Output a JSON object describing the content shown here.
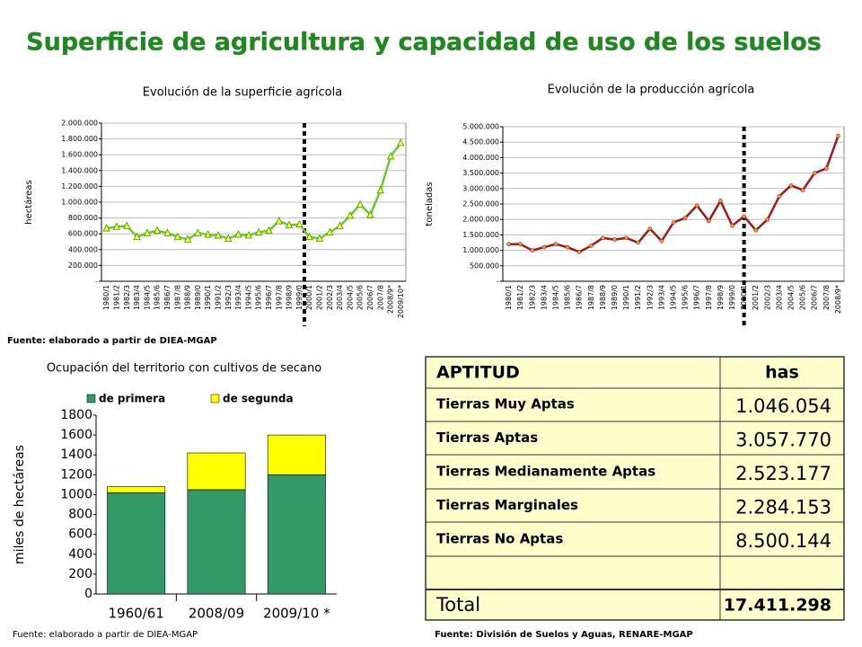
{
  "title": "Superficie de agricultura y capacidad de uso de los suelos",
  "chart_data": [
    {
      "type": "line",
      "title": "Evolución de la superficie agrícola",
      "y_label": "hectáreas",
      "categories": [
        "1980/1",
        "1981/2",
        "1982/3",
        "1983/4",
        "1984/5",
        "1985/6",
        "1986/7",
        "1987/8",
        "1988/9",
        "1989/0",
        "1990/1",
        "1991/2",
        "1992/3",
        "1993/4",
        "1994/5",
        "1995/6",
        "1996/7",
        "1997/8",
        "1998/9",
        "1999/0",
        "2000/1",
        "2001/2",
        "2002/3",
        "2003/4",
        "2004/5",
        "2005/6",
        "2006/7",
        "2007/8",
        "2008/9*",
        "2009/10*"
      ],
      "values": [
        670000,
        690000,
        700000,
        560000,
        610000,
        640000,
        610000,
        560000,
        530000,
        610000,
        590000,
        580000,
        540000,
        590000,
        580000,
        620000,
        640000,
        760000,
        710000,
        720000,
        560000,
        540000,
        620000,
        700000,
        830000,
        970000,
        840000,
        1150000,
        1580000,
        1750000
      ],
      "color": "#66cc33",
      "marker_color": "#ffff33",
      "ylim": [
        0,
        2000000
      ],
      "yticks": [
        {
          "value": 0,
          "label": "-"
        },
        {
          "value": 200000,
          "label": "200.000"
        },
        {
          "value": 400000,
          "label": "400.000"
        },
        {
          "value": 600000,
          "label": "600.000"
        },
        {
          "value": 800000,
          "label": "800.000"
        },
        {
          "value": 1000000,
          "label": "1.000.000"
        },
        {
          "value": 1200000,
          "label": "1.200.000"
        },
        {
          "value": 1400000,
          "label": "1.400.000"
        },
        {
          "value": 1600000,
          "label": "1.600.000"
        },
        {
          "value": 1800000,
          "label": "1.800.000"
        },
        {
          "value": 2000000,
          "label": "2.000.000"
        }
      ],
      "grid": true
    },
    {
      "type": "line",
      "title": "Evolución de la producción agrícola",
      "y_label": "toneladas",
      "categories": [
        "1980/1",
        "1981/2",
        "1982/3",
        "1983/4",
        "1984/5",
        "1985/6",
        "1986/7",
        "1987/8",
        "1988/9",
        "1989/0",
        "1990/1",
        "1991/2",
        "1992/3",
        "1993/4",
        "1994/5",
        "1995/6",
        "1996/7",
        "1997/8",
        "1998/9",
        "1999/0",
        "2000/1",
        "2001/2",
        "2002/3",
        "2003/4",
        "2004/5",
        "2005/6",
        "2006/7",
        "2007/8",
        "2008/9*"
      ],
      "values": [
        1200000,
        1200000,
        1000000,
        1100000,
        1200000,
        1100000,
        950000,
        1150000,
        1400000,
        1350000,
        1400000,
        1250000,
        1700000,
        1300000,
        1900000,
        2050000,
        2450000,
        1950000,
        2600000,
        1800000,
        2100000,
        1650000,
        2000000,
        2750000,
        3100000,
        2950000,
        3500000,
        3650000,
        4700000
      ],
      "color": "#9b1c1c",
      "marker_color": "#ff9933",
      "ylim": [
        0,
        5000000
      ],
      "yticks": [
        {
          "value": 0,
          "label": "-"
        },
        {
          "value": 500000,
          "label": "500.000"
        },
        {
          "value": 1000000,
          "label": "1.000.000"
        },
        {
          "value": 1500000,
          "label": "1.500.000"
        },
        {
          "value": 2000000,
          "label": "2.000.000"
        },
        {
          "value": 2500000,
          "label": "2.500.000"
        },
        {
          "value": 3000000,
          "label": "3.000.000"
        },
        {
          "value": 3500000,
          "label": "3.500.000"
        },
        {
          "value": 4000000,
          "label": "4.000.000"
        },
        {
          "value": 4500000,
          "label": "4.500.000"
        },
        {
          "value": 5000000,
          "label": "5.000.000"
        }
      ],
      "grid": true
    },
    {
      "type": "stacked_bar",
      "title": "Ocupación del territorio con cultivos de secano",
      "y_label": "miles de hectáreas",
      "categories": [
        "1960/61",
        "2008/09",
        "2009/10 *"
      ],
      "series": [
        {
          "name": "de primera",
          "color": "#339966",
          "values": [
            1020,
            1050,
            1200
          ]
        },
        {
          "name": "de segunda",
          "color": "#ffff00",
          "values": [
            60,
            370,
            400
          ]
        }
      ],
      "ylim": [
        0,
        1800
      ],
      "yticks": [
        0,
        200,
        400,
        600,
        800,
        1000,
        1200,
        1400,
        1600,
        1800
      ],
      "grid": false
    }
  ],
  "sources": [
    "Fuente: elaborado a partir de DIEA-MGAP",
    "Fuente: elaborado a partir de DIEA-MGAP",
    "Fuente: División de Suelos y Aguas, RENARE-MGAP"
  ],
  "table": {
    "header": [
      "APTITUD",
      "has"
    ],
    "rows": [
      [
        "Tierras Muy Aptas",
        "1.046.054"
      ],
      [
        "Tierras Aptas",
        "3.057.770"
      ],
      [
        "Tierras Medianamente Aptas",
        "2.523.177"
      ],
      [
        "Tierras Marginales",
        "2.284.153"
      ],
      [
        "Tierras No Aptas",
        "8.500.144"
      ]
    ],
    "total": [
      "Total",
      "17.411.298"
    ]
  }
}
